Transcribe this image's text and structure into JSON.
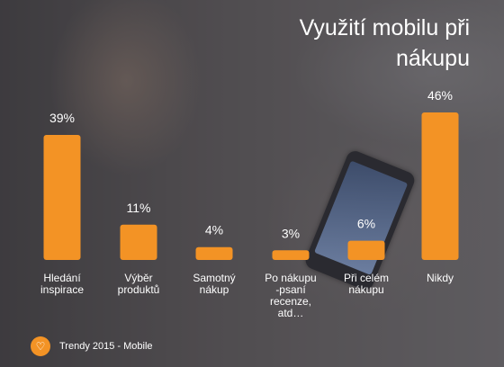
{
  "chart_data": {
    "type": "bar",
    "title": "Využití mobilu při nákupu",
    "categories": [
      [
        "Hledání",
        "inspirace"
      ],
      [
        "Výběr",
        "produktů"
      ],
      [
        "Samotný",
        "nákup"
      ],
      [
        "Po nákupu",
        "-psaní",
        "recenze,",
        "atd…"
      ],
      [
        "Při celém",
        "nákupu"
      ],
      [
        "Nikdy"
      ]
    ],
    "values": [
      39,
      11,
      4,
      3,
      6,
      46
    ],
    "value_labels": [
      "39%",
      "11%",
      "4%",
      "3%",
      "6%",
      "46%"
    ],
    "units": "%",
    "bar_color": "#f39325",
    "label_color": "#ffffff",
    "grid": false
  },
  "footer": {
    "text": "Trendy 2015 - Mobile",
    "icon": "heart-icon"
  }
}
